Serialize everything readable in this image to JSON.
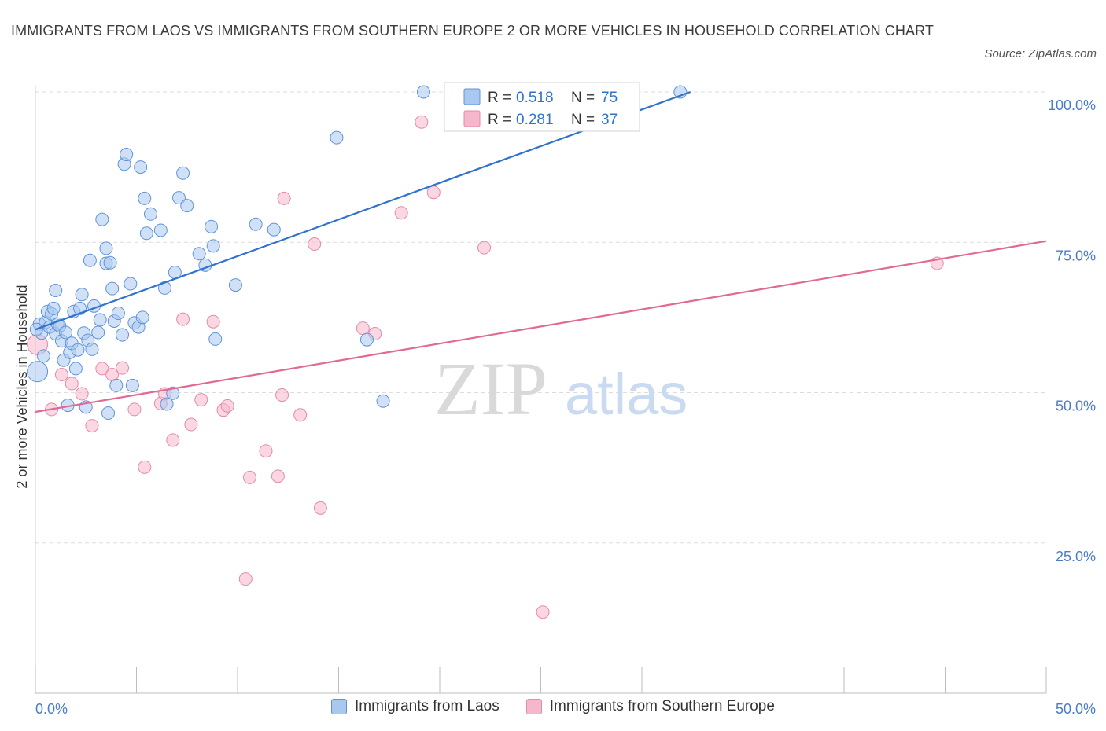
{
  "title": "IMMIGRANTS FROM LAOS VS IMMIGRANTS FROM SOUTHERN EUROPE 2 OR MORE VEHICLES IN HOUSEHOLD CORRELATION CHART",
  "source": "Source: ZipAtlas.com",
  "watermark": {
    "zip": "ZIP",
    "atlas": "atlas"
  },
  "colors": {
    "blue_fill": "#a9c8f0",
    "blue_stroke": "#5f93d8",
    "blue_line": "#2f73cc",
    "pink_fill": "#f5b7cc",
    "pink_stroke": "#e68aa9",
    "pink_line": "#e06a95",
    "tick_label": "#4a7cc9",
    "grid": "#dddddd"
  },
  "legend_top": [
    {
      "r_label": "R =",
      "r_value": "0.518",
      "n_label": "N =",
      "n_value": "75"
    },
    {
      "r_label": "R =",
      "r_value": "0.281",
      "n_label": "N =",
      "n_value": "37"
    }
  ],
  "chart_data": {
    "type": "scatter",
    "title": "IMMIGRANTS FROM LAOS VS IMMIGRANTS FROM SOUTHERN EUROPE 2 OR MORE VEHICLES IN HOUSEHOLD CORRELATION CHART",
    "xlabel": "",
    "ylabel": "2 or more Vehicles in Household",
    "xlim": [
      0,
      50
    ],
    "ylim": [
      0,
      100
    ],
    "x_ticks": [
      "0.0%",
      "50.0%"
    ],
    "y_ticks": [
      "25.0%",
      "50.0%",
      "75.0%",
      "100.0%"
    ],
    "y_tick_values": [
      25,
      50,
      75,
      100
    ],
    "grid": true,
    "legend_position": "top-center",
    "series": [
      {
        "name": "Immigrants from Laos",
        "R": 0.518,
        "N": 75,
        "trend": {
          "x": [
            0,
            32.4
          ],
          "y": [
            60.5,
            100
          ]
        },
        "points": [
          [
            0.1,
            53.5
          ],
          [
            0.2,
            61.4
          ],
          [
            0.3,
            59.9
          ],
          [
            0.4,
            56.1
          ],
          [
            0.5,
            61.7
          ],
          [
            0.6,
            63.5
          ],
          [
            0.7,
            60.9
          ],
          [
            0.8,
            63.1
          ],
          [
            0.9,
            64.0
          ],
          [
            1.0,
            67.0
          ],
          [
            1.0,
            59.8
          ],
          [
            1.1,
            61.4
          ],
          [
            1.2,
            61.1
          ],
          [
            1.3,
            58.6
          ],
          [
            1.4,
            55.4
          ],
          [
            1.5,
            60.0
          ],
          [
            1.6,
            47.9
          ],
          [
            1.7,
            56.7
          ],
          [
            1.8,
            58.2
          ],
          [
            1.9,
            63.5
          ],
          [
            2.0,
            54.0
          ],
          [
            2.1,
            57.1
          ],
          [
            2.2,
            64.0
          ],
          [
            2.3,
            66.3
          ],
          [
            2.4,
            59.9
          ],
          [
            2.5,
            47.6
          ],
          [
            2.6,
            58.7
          ],
          [
            2.8,
            57.2
          ],
          [
            2.9,
            64.4
          ],
          [
            3.1,
            60.0
          ],
          [
            3.2,
            62.1
          ],
          [
            3.3,
            78.8
          ],
          [
            3.5,
            71.5
          ],
          [
            3.5,
            74.0
          ],
          [
            3.6,
            46.6
          ],
          [
            3.7,
            71.6
          ],
          [
            3.8,
            67.3
          ],
          [
            3.9,
            61.9
          ],
          [
            4.0,
            51.2
          ],
          [
            4.1,
            63.2
          ],
          [
            4.3,
            59.6
          ],
          [
            4.4,
            88.0
          ],
          [
            4.5,
            89.6
          ],
          [
            4.7,
            68.1
          ],
          [
            4.8,
            51.2
          ],
          [
            4.9,
            61.6
          ],
          [
            5.1,
            60.9
          ],
          [
            5.2,
            87.5
          ],
          [
            5.3,
            62.5
          ],
          [
            5.4,
            82.3
          ],
          [
            5.5,
            76.5
          ],
          [
            5.7,
            79.7
          ],
          [
            6.2,
            77.0
          ],
          [
            6.4,
            67.4
          ],
          [
            6.5,
            48.1
          ],
          [
            6.8,
            49.9
          ],
          [
            6.9,
            70.0
          ],
          [
            7.1,
            82.4
          ],
          [
            7.3,
            86.5
          ],
          [
            7.5,
            81.1
          ],
          [
            8.1,
            73.1
          ],
          [
            8.4,
            71.2
          ],
          [
            8.7,
            77.6
          ],
          [
            8.8,
            74.4
          ],
          [
            8.9,
            58.9
          ],
          [
            9.9,
            67.9
          ],
          [
            10.9,
            78.0
          ],
          [
            11.8,
            77.1
          ],
          [
            14.9,
            92.4
          ],
          [
            16.4,
            58.8
          ],
          [
            17.2,
            48.6
          ],
          [
            19.2,
            100.0
          ],
          [
            31.9,
            100.0
          ],
          [
            0.05,
            60.5
          ],
          [
            2.7,
            72.0
          ]
        ]
      },
      {
        "name": "Immigrants from Southern Europe",
        "R": 0.281,
        "N": 37,
        "trend": {
          "x": [
            0,
            50
          ],
          "y": [
            46.8,
            75.2
          ]
        },
        "points": [
          [
            0.1,
            58.0
          ],
          [
            0.8,
            47.2
          ],
          [
            1.3,
            53.0
          ],
          [
            1.8,
            51.5
          ],
          [
            2.3,
            49.8
          ],
          [
            2.8,
            44.5
          ],
          [
            3.3,
            54.0
          ],
          [
            3.8,
            53.0
          ],
          [
            4.3,
            54.1
          ],
          [
            4.9,
            47.2
          ],
          [
            5.4,
            37.6
          ],
          [
            6.2,
            48.2
          ],
          [
            6.4,
            49.8
          ],
          [
            6.8,
            42.1
          ],
          [
            7.3,
            62.2
          ],
          [
            7.7,
            44.7
          ],
          [
            8.2,
            48.8
          ],
          [
            8.8,
            61.8
          ],
          [
            9.3,
            47.1
          ],
          [
            9.5,
            47.8
          ],
          [
            10.4,
            19.0
          ],
          [
            10.6,
            35.9
          ],
          [
            11.4,
            40.3
          ],
          [
            12.0,
            36.1
          ],
          [
            12.2,
            49.6
          ],
          [
            12.3,
            82.3
          ],
          [
            13.1,
            46.3
          ],
          [
            13.8,
            74.7
          ],
          [
            14.1,
            30.8
          ],
          [
            16.2,
            60.7
          ],
          [
            16.8,
            59.8
          ],
          [
            18.1,
            79.9
          ],
          [
            19.1,
            95.0
          ],
          [
            19.7,
            83.3
          ],
          [
            22.2,
            74.1
          ],
          [
            25.1,
            13.5
          ],
          [
            44.6,
            71.5
          ]
        ]
      }
    ]
  }
}
